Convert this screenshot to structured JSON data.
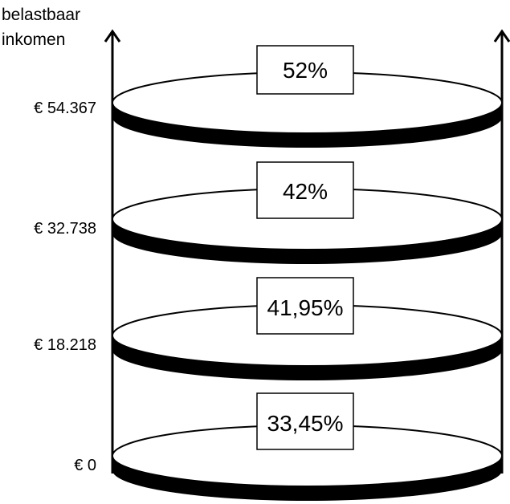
{
  "axis": {
    "title_line1": "belastbaar",
    "title_line2": "inkomen"
  },
  "brackets": [
    {
      "threshold": "€ 54.367",
      "rate": "52%"
    },
    {
      "threshold": "€ 32.738",
      "rate": "42%"
    },
    {
      "threshold": "€ 18.218",
      "rate": "41,95%"
    },
    {
      "threshold": "€ 0",
      "rate": "33,45%"
    }
  ],
  "colors": {
    "stroke": "#000000",
    "band": "#000000",
    "disc_fill": "#ffffff",
    "label_fill": "#ffffff"
  }
}
